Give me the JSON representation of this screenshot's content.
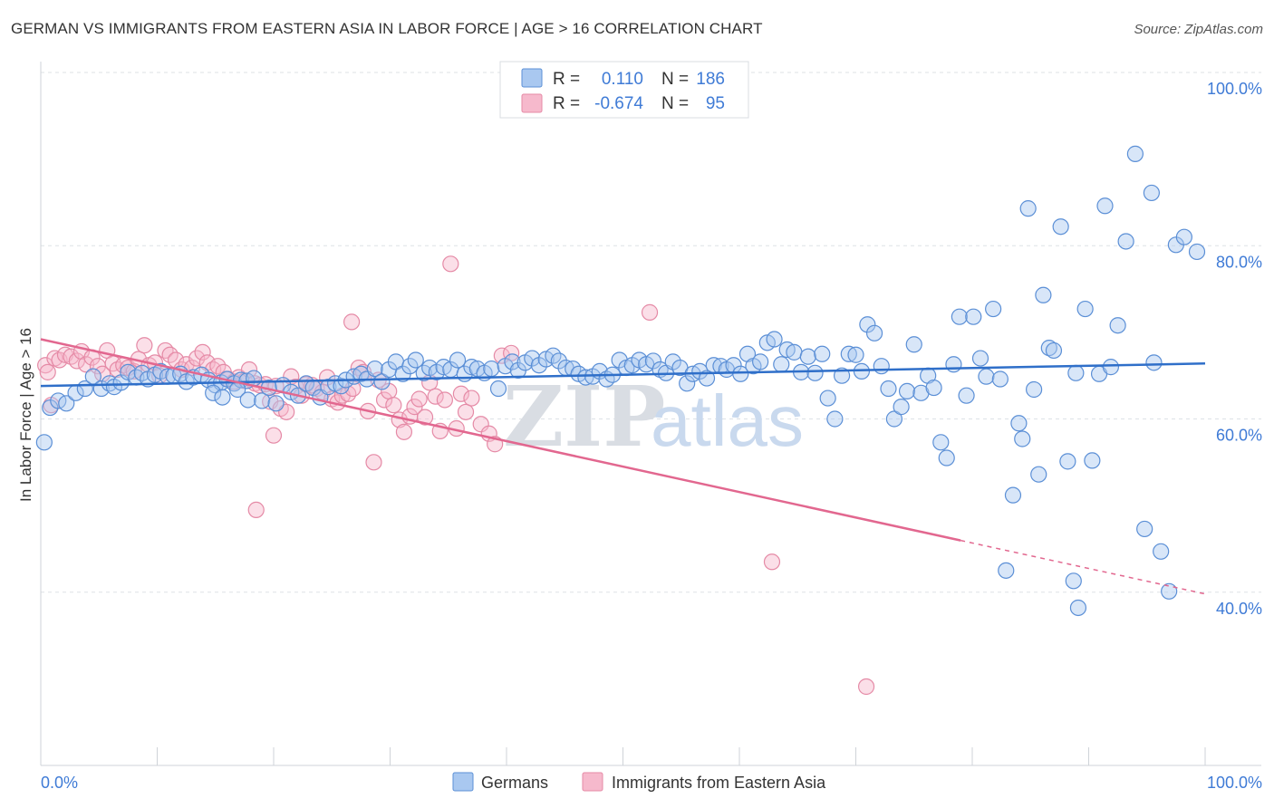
{
  "title": "GERMAN VS IMMIGRANTS FROM EASTERN ASIA IN LABOR FORCE | AGE > 16 CORRELATION CHART",
  "source": "Source: ZipAtlas.com",
  "watermark": {
    "zip": "ZIP",
    "atlas": "atlas"
  },
  "colors": {
    "blue_fill": "#a9c8f0",
    "blue_stroke": "#5b8fd6",
    "blue_line": "#2f6fc9",
    "pink_fill": "#f6b9cc",
    "pink_stroke": "#e58aa6",
    "pink_line": "#e2678f",
    "grid": "#dde1e6",
    "accent_text": "#3f7bd6"
  },
  "legend": {
    "rows": [
      {
        "r_label": "R =",
        "r_value": "0.110",
        "n_label": "N =",
        "n_value": "186"
      },
      {
        "r_label": "R =",
        "r_value": "-0.674",
        "n_label": "N =",
        "n_value": "95"
      }
    ]
  },
  "chart_data": {
    "type": "scatter",
    "title": "GERMAN VS IMMIGRANTS FROM EASTERN ASIA IN LABOR FORCE | AGE > 16 CORRELATION CHART",
    "xlabel": "",
    "ylabel": "In Labor Force | Age > 16",
    "xlim": [
      0,
      100
    ],
    "ylim": [
      20,
      100
    ],
    "x_tick_labels": [
      "0.0%",
      "100.0%"
    ],
    "y_ticks": [
      {
        "value": 100,
        "label": "100.0%"
      },
      {
        "value": 80,
        "label": "80.0%"
      },
      {
        "value": 60,
        "label": "60.0%"
      },
      {
        "value": 40,
        "label": "40.0%"
      }
    ],
    "grid": true,
    "legend_position": "top-center",
    "series": [
      {
        "name": "Germans",
        "color": "#a9c8f0",
        "r": 0.11,
        "n": 186,
        "trend": {
          "x": [
            0,
            100
          ],
          "y": [
            63.8,
            66.4
          ],
          "dashed_from": null
        },
        "points": [
          [
            0.3,
            57.3
          ],
          [
            0.8,
            61.3
          ],
          [
            1.5,
            62.1
          ],
          [
            2.2,
            61.8
          ],
          [
            3,
            63
          ],
          [
            3.8,
            63.5
          ],
          [
            4.5,
            64.9
          ],
          [
            5.2,
            63.5
          ],
          [
            5.9,
            64.1
          ],
          [
            6.3,
            63.7
          ],
          [
            6.9,
            64.2
          ],
          [
            7.5,
            65.4
          ],
          [
            8.2,
            64.8
          ],
          [
            8.7,
            65.3
          ],
          [
            9.2,
            64.6
          ],
          [
            9.8,
            65.1
          ],
          [
            10.3,
            65.5
          ],
          [
            10.9,
            64.9
          ],
          [
            11.4,
            65
          ],
          [
            12,
            65.2
          ],
          [
            12.5,
            64.3
          ],
          [
            13.1,
            64.8
          ],
          [
            13.8,
            65.1
          ],
          [
            14.4,
            64.5
          ],
          [
            15,
            63.9
          ],
          [
            15.5,
            64.2
          ],
          [
            16,
            64.6
          ],
          [
            16.6,
            64.1
          ],
          [
            17.2,
            64.5
          ],
          [
            17.7,
            64.4
          ],
          [
            18.3,
            64.7
          ],
          [
            14.8,
            63
          ],
          [
            15.6,
            62.5
          ],
          [
            16.9,
            63.4
          ],
          [
            17.8,
            62.2
          ],
          [
            19,
            62.1
          ],
          [
            19.6,
            63.6
          ],
          [
            20.2,
            61.8
          ],
          [
            20.8,
            63.9
          ],
          [
            21.5,
            63.1
          ],
          [
            22.1,
            62.7
          ],
          [
            22.8,
            64.1
          ],
          [
            23.4,
            63.6
          ],
          [
            24,
            62.5
          ],
          [
            24.7,
            63.7
          ],
          [
            25.3,
            64.1
          ],
          [
            25.8,
            63.8
          ],
          [
            26.2,
            64.5
          ],
          [
            26.9,
            64.9
          ],
          [
            27.5,
            65.2
          ],
          [
            28,
            64.6
          ],
          [
            28.7,
            65.8
          ],
          [
            29.3,
            64.3
          ],
          [
            29.9,
            65.7
          ],
          [
            30.5,
            66.6
          ],
          [
            31.1,
            65.2
          ],
          [
            31.7,
            66.1
          ],
          [
            32.2,
            66.8
          ],
          [
            32.9,
            65.3
          ],
          [
            33.4,
            65.9
          ],
          [
            34,
            65.4
          ],
          [
            34.6,
            66
          ],
          [
            35.2,
            65.7
          ],
          [
            35.8,
            66.8
          ],
          [
            36.4,
            65.2
          ],
          [
            37,
            66
          ],
          [
            37.5,
            65.8
          ],
          [
            38.1,
            65.3
          ],
          [
            38.7,
            65.8
          ],
          [
            39.3,
            63.5
          ],
          [
            39.9,
            66.1
          ],
          [
            40.5,
            66.6
          ],
          [
            41,
            65.6
          ],
          [
            41.6,
            66.5
          ],
          [
            42.2,
            67
          ],
          [
            42.8,
            66.2
          ],
          [
            43.4,
            66.9
          ],
          [
            44,
            67.3
          ],
          [
            44.5,
            66.7
          ],
          [
            45.1,
            65.9
          ],
          [
            45.7,
            65.8
          ],
          [
            46.2,
            65.2
          ],
          [
            46.8,
            64.8
          ],
          [
            47.4,
            64.9
          ],
          [
            48,
            65.5
          ],
          [
            48.6,
            64.6
          ],
          [
            49.1,
            65.1
          ],
          [
            49.7,
            66.8
          ],
          [
            50.3,
            65.9
          ],
          [
            50.8,
            66.2
          ],
          [
            51.4,
            66.8
          ],
          [
            52,
            66.3
          ],
          [
            52.6,
            66.7
          ],
          [
            53.2,
            65.7
          ],
          [
            53.7,
            65.3
          ],
          [
            54.3,
            66.6
          ],
          [
            54.9,
            65.9
          ],
          [
            55.5,
            64.1
          ],
          [
            56,
            65.2
          ],
          [
            56.6,
            65.5
          ],
          [
            57.2,
            64.7
          ],
          [
            57.8,
            66.2
          ],
          [
            58.4,
            66.1
          ],
          [
            58.9,
            65.7
          ],
          [
            59.5,
            66.2
          ],
          [
            60.1,
            65.2
          ],
          [
            60.7,
            67.5
          ],
          [
            61.2,
            66.1
          ],
          [
            61.8,
            66.6
          ],
          [
            62.4,
            68.8
          ],
          [
            63,
            69.2
          ],
          [
            63.6,
            66.3
          ],
          [
            64.1,
            68
          ],
          [
            64.7,
            67.7
          ],
          [
            65.3,
            65.4
          ],
          [
            65.9,
            67.2
          ],
          [
            66.5,
            65.3
          ],
          [
            67.1,
            67.5
          ],
          [
            67.6,
            62.4
          ],
          [
            68.2,
            60
          ],
          [
            68.8,
            65
          ],
          [
            69.4,
            67.5
          ],
          [
            70,
            67.4
          ],
          [
            70.5,
            65.5
          ],
          [
            71,
            70.9
          ],
          [
            71.6,
            69.9
          ],
          [
            72.2,
            66.1
          ],
          [
            72.8,
            63.5
          ],
          [
            73.3,
            60
          ],
          [
            73.9,
            61.4
          ],
          [
            74.4,
            63.2
          ],
          [
            75,
            68.6
          ],
          [
            75.6,
            63
          ],
          [
            76.2,
            65
          ],
          [
            76.7,
            63.6
          ],
          [
            77.3,
            57.3
          ],
          [
            77.8,
            55.5
          ],
          [
            78.4,
            66.3
          ],
          [
            78.9,
            71.8
          ],
          [
            79.5,
            62.7
          ],
          [
            80.1,
            71.8
          ],
          [
            80.7,
            67
          ],
          [
            81.2,
            64.9
          ],
          [
            81.8,
            72.7
          ],
          [
            82.4,
            64.6
          ],
          [
            82.9,
            42.5
          ],
          [
            83.5,
            51.2
          ],
          [
            84,
            59.5
          ],
          [
            84.3,
            57.7
          ],
          [
            84.8,
            84.3
          ],
          [
            85.3,
            63.4
          ],
          [
            85.7,
            53.6
          ],
          [
            86.1,
            74.3
          ],
          [
            86.6,
            68.2
          ],
          [
            87,
            67.9
          ],
          [
            87.6,
            82.2
          ],
          [
            88.2,
            55.1
          ],
          [
            88.7,
            41.3
          ],
          [
            89.1,
            38.2
          ],
          [
            89.7,
            72.7
          ],
          [
            90.3,
            55.2
          ],
          [
            90.9,
            65.2
          ],
          [
            91.4,
            84.6
          ],
          [
            91.9,
            66
          ],
          [
            92.5,
            70.8
          ],
          [
            93.2,
            80.5
          ],
          [
            94,
            90.6
          ],
          [
            94.8,
            47.3
          ],
          [
            95.4,
            86.1
          ],
          [
            96.2,
            44.7
          ],
          [
            96.9,
            40.1
          ],
          [
            97.5,
            80.1
          ],
          [
            98.2,
            81
          ],
          [
            99.3,
            79.3
          ],
          [
            88.9,
            65.3
          ],
          [
            95.6,
            66.5
          ]
        ]
      },
      {
        "name": "Immigrants from Eastern Asia",
        "color": "#f6b9cc",
        "r": -0.674,
        "n": 95,
        "trend": {
          "x": [
            0,
            100
          ],
          "y": [
            69.2,
            39.8
          ],
          "dashed_from": 79
        },
        "points": [
          [
            0.4,
            66.2
          ],
          [
            0.6,
            65.4
          ],
          [
            0.9,
            61.6
          ],
          [
            1.2,
            67
          ],
          [
            1.6,
            66.8
          ],
          [
            2.1,
            67.4
          ],
          [
            2.6,
            67.2
          ],
          [
            3.1,
            66.7
          ],
          [
            3.5,
            67.8
          ],
          [
            3.9,
            66.3
          ],
          [
            4.4,
            67.1
          ],
          [
            4.9,
            66.1
          ],
          [
            5.3,
            65.2
          ],
          [
            5.7,
            67.9
          ],
          [
            6.2,
            66.4
          ],
          [
            6.6,
            65.7
          ],
          [
            7.1,
            66.2
          ],
          [
            7.5,
            65.9
          ],
          [
            8,
            65.5
          ],
          [
            8.4,
            66.9
          ],
          [
            8.9,
            68.5
          ],
          [
            9.3,
            66.2
          ],
          [
            9.8,
            66.5
          ],
          [
            10.2,
            65
          ],
          [
            10.7,
            67.9
          ],
          [
            11.1,
            67.4
          ],
          [
            11.6,
            66.8
          ],
          [
            12.1,
            65.7
          ],
          [
            12.5,
            66.3
          ],
          [
            13,
            65.9
          ],
          [
            13.4,
            67
          ],
          [
            13.9,
            67.7
          ],
          [
            14.3,
            66.5
          ],
          [
            14.8,
            65.7
          ],
          [
            15.2,
            66.1
          ],
          [
            15.7,
            65.4
          ],
          [
            16.1,
            64.6
          ],
          [
            16.6,
            64.3
          ],
          [
            17,
            64.8
          ],
          [
            17.5,
            64.4
          ],
          [
            17.9,
            65.7
          ],
          [
            18.4,
            64.1
          ],
          [
            18.8,
            63.9
          ],
          [
            19.3,
            64
          ],
          [
            19.7,
            62
          ],
          [
            20.2,
            63.8
          ],
          [
            20.6,
            61.2
          ],
          [
            21.1,
            60.8
          ],
          [
            21.5,
            64.9
          ],
          [
            21.9,
            63.7
          ],
          [
            22.4,
            62.7
          ],
          [
            22.8,
            64
          ],
          [
            23.3,
            63.9
          ],
          [
            23.7,
            63.5
          ],
          [
            24.2,
            63.1
          ],
          [
            24.6,
            64.8
          ],
          [
            25,
            62.3
          ],
          [
            25.5,
            61.9
          ],
          [
            25.9,
            62.7
          ],
          [
            26.4,
            62.9
          ],
          [
            26.8,
            63.5
          ],
          [
            27.3,
            65.9
          ],
          [
            27.7,
            65.4
          ],
          [
            28.1,
            60.9
          ],
          [
            28.6,
            55
          ],
          [
            29,
            64.5
          ],
          [
            29.5,
            62.2
          ],
          [
            29.9,
            63.2
          ],
          [
            30.3,
            61.6
          ],
          [
            30.8,
            59.9
          ],
          [
            31.2,
            58.5
          ],
          [
            31.7,
            60.3
          ],
          [
            32.1,
            61.4
          ],
          [
            32.5,
            62.3
          ],
          [
            33,
            60.2
          ],
          [
            33.4,
            64.2
          ],
          [
            33.9,
            62.6
          ],
          [
            34.3,
            58.6
          ],
          [
            34.7,
            62.2
          ],
          [
            35.2,
            77.9
          ],
          [
            35.7,
            58.9
          ],
          [
            36.1,
            62.9
          ],
          [
            36.5,
            60.8
          ],
          [
            37,
            62.4
          ],
          [
            37.8,
            59.4
          ],
          [
            38.5,
            58.3
          ],
          [
            39,
            57.1
          ],
          [
            39.6,
            67.3
          ],
          [
            40.4,
            67.6
          ],
          [
            18.5,
            49.5
          ],
          [
            20,
            58.1
          ],
          [
            26.7,
            71.2
          ],
          [
            52.3,
            72.3
          ],
          [
            62.8,
            43.5
          ],
          [
            70.9,
            29.1
          ]
        ]
      }
    ]
  }
}
